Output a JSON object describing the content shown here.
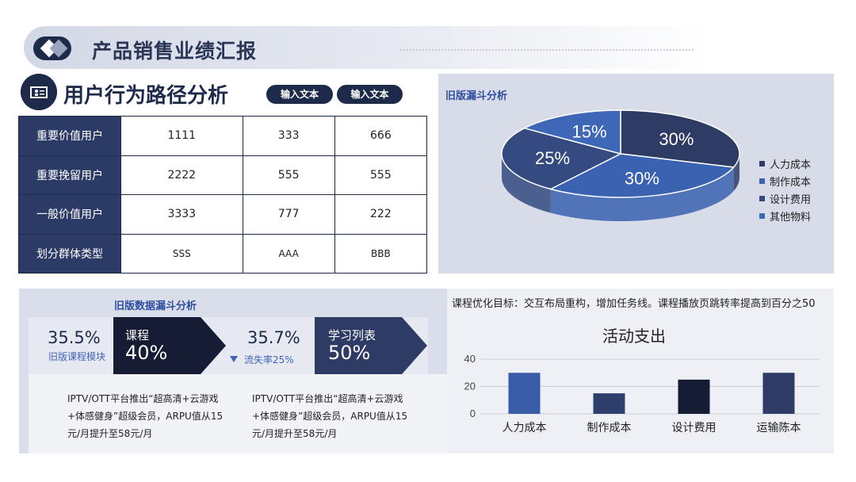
{
  "header": {
    "title": "产品销售业绩汇报"
  },
  "section": {
    "title": "用户行为路径分析",
    "buttons": [
      "输入文本",
      "输入文本"
    ]
  },
  "table": {
    "rows": [
      {
        "label": "重要价值用户",
        "values": [
          "1111",
          "333",
          "666"
        ]
      },
      {
        "label": "重要挽留用户",
        "values": [
          "2222",
          "555",
          "555"
        ]
      },
      {
        "label": "一般价值用户",
        "values": [
          "3333",
          "777",
          "222"
        ]
      },
      {
        "label": "划分群体类型",
        "values": [
          "SSS",
          "AAA",
          "BBB"
        ]
      }
    ]
  },
  "pie": {
    "title": "旧版漏斗分析",
    "slices": [
      {
        "label": "人力成本",
        "value": 30,
        "text": "30%",
        "color": "#2e3b64"
      },
      {
        "label": "制作成本",
        "value": 30,
        "text": "30%",
        "color": "#3a62b0"
      },
      {
        "label": "设计费用",
        "value": 25,
        "text": "25%",
        "color": "#344a80"
      },
      {
        "label": "其他物料",
        "value": 15,
        "text": "15%",
        "color": "#3f67b8"
      }
    ]
  },
  "funnel": {
    "title": "旧版数据漏斗分析",
    "stat1": {
      "value": "35.5%",
      "label": "旧版课程模块"
    },
    "arrow1": {
      "label": "课程",
      "value": "40%"
    },
    "stat2": {
      "value": "35.7%",
      "label": "流失率25%"
    },
    "arrow2": {
      "label": "学习列表",
      "value": "50%"
    },
    "desc1": "IPTV/OTT平台推出“超高清+云游戏+体感健身”超级会员，ARPU值从15元/月提升至58元/月",
    "desc2": "IPTV/OTT平台推出“超高清+云游戏+体感健身”超级会员，ARPU值从15元/月提升至58元/月"
  },
  "goal": {
    "text": "课程优化目标：交互布局重构，增加任务线。课程播放页跳转率提高到百分之50"
  },
  "chart_data": {
    "type": "bar",
    "title": "活动支出",
    "categories": [
      "人力成本",
      "制作成本",
      "设计费用",
      "运输陈本"
    ],
    "values": [
      30,
      15,
      25,
      30
    ],
    "colors": [
      "#3a5ba8",
      "#2e3f6e",
      "#151c33",
      "#2e3b64"
    ],
    "ylim": [
      0,
      40
    ],
    "yticks": [
      0,
      20,
      40
    ],
    "grid": true
  }
}
